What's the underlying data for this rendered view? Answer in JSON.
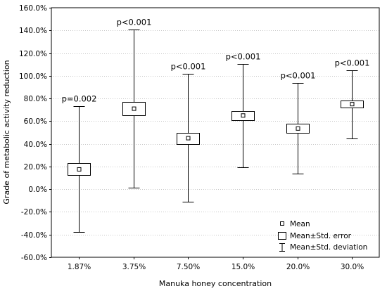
{
  "chart_data": {
    "type": "box",
    "xlabel": "Manuka honey concentration",
    "ylabel": "Grade of metabolic activity reduction",
    "ylim": [
      -60,
      160
    ],
    "yticks": [
      -60,
      -40,
      -20,
      0,
      20,
      40,
      60,
      80,
      100,
      120,
      140,
      160
    ],
    "ytick_labels": [
      "-60.0%",
      "-40.0%",
      "-20.0%",
      "0.0%",
      "20.0%",
      "40.0%",
      "60.0%",
      "80.0%",
      "100.0%",
      "120.0%",
      "140.0%",
      "160.0%"
    ],
    "grid": "horizontal",
    "categories": [
      "1.87%",
      "3.75%",
      "7.50%",
      "15.0%",
      "20.0%",
      "30.0%"
    ],
    "mean": [
      17.5,
      71,
      45,
      65,
      53.5,
      75
    ],
    "std_error_low": [
      12.5,
      65,
      40,
      61,
      50,
      72
    ],
    "std_error_high": [
      23,
      77,
      50,
      69,
      58,
      78
    ],
    "std_dev_low": [
      -37.5,
      1.5,
      -11,
      19.5,
      13.5,
      45
    ],
    "std_dev_high": [
      73.5,
      141,
      101.5,
      110.5,
      93.5,
      105
    ],
    "annotations": [
      "p=0.002",
      "p<0.001",
      "p<0.001",
      "p<0.001",
      "p<0.001",
      "p<0.001"
    ],
    "legend": {
      "position": "bottom-right",
      "entries": [
        "Mean",
        "Mean±Std. error",
        "Mean±Std. deviation"
      ]
    }
  }
}
